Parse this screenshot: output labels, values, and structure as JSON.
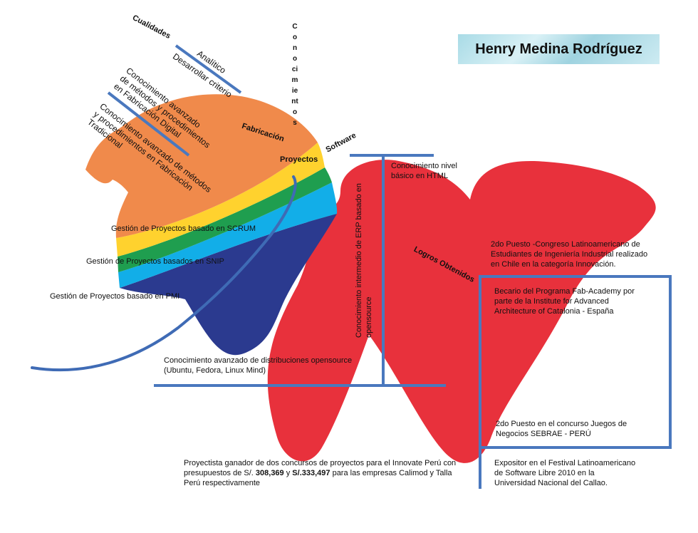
{
  "title": "Henry Medina Rodríguez",
  "headings": {
    "cualidades": "Cualidades",
    "conocimientos": "Conocimientos",
    "fabricacion": "Fabricación",
    "software": "Software",
    "proyectos": "Proyectos",
    "logros": "Logros Obtenidos"
  },
  "cualidades": {
    "analitico": "Analítico",
    "criterio": "Desarrollar criterio"
  },
  "fabricacion": {
    "digital": [
      "Conocimiento avanzado",
      "de métodos y procedimientos",
      "en Fabricación Digital"
    ],
    "tradicional": [
      "Conocimiento avanzado de métodos",
      "y procedimientos en Fabricación",
      "Tradicional"
    ]
  },
  "proyectos": {
    "scrum": "Gestión de Proyectos basado en SCRUM",
    "snip": "Gestión de Proyectos basados en SNIP",
    "pmi": "Gestión de Proyectos basado en PMI"
  },
  "software": {
    "html": [
      "Conocimiento nivel",
      "básico en HTML"
    ],
    "erp": [
      "Conocimiento intermedio de ERP basado en",
      "opensource"
    ],
    "opensource": [
      "Conocimiento avanzado de distribuciones opensource",
      "(Ubuntu, Fedora, Linux Mind)"
    ]
  },
  "logros": {
    "congreso": [
      "2do Puesto -Congreso Latinoamericano de",
      "Estudiantes de Ingeniería Industrial realizado",
      "en Chile en la categoría Innovación."
    ],
    "becario": [
      "Becario del Programa Fab-Academy por",
      " parte de la Institute for Advanced",
      "Architecture of Catalonia - España"
    ],
    "sebrae": [
      "2do Puesto en el concurso Juegos de",
      "Negocios SEBRAE - PERÚ"
    ],
    "festival": [
      "Expositor en el Festival Latinoamericano",
      " de Software Libre 2010 en la",
      "Universidad Nacional del Callao."
    ],
    "innovate": {
      "line1": "Proyectista ganador de dos concursos de proyectos para el Innovate Perú con",
      "line2_pre": "presupuestos de S/. ",
      "amount1": "308,369",
      "line2_mid": " y ",
      "amount2": "S/.333,497",
      "line2_post": " para las empresas Calimod y Talla",
      "line3": "Perú respectivamente"
    }
  },
  "colors": {
    "red": "#e8313c",
    "orange": "#f08a4b",
    "yellow": "#ffd22e",
    "green": "#1f9e4f",
    "cyan": "#12aee8",
    "navy": "#2b3a8f",
    "line": "#4a78be"
  }
}
